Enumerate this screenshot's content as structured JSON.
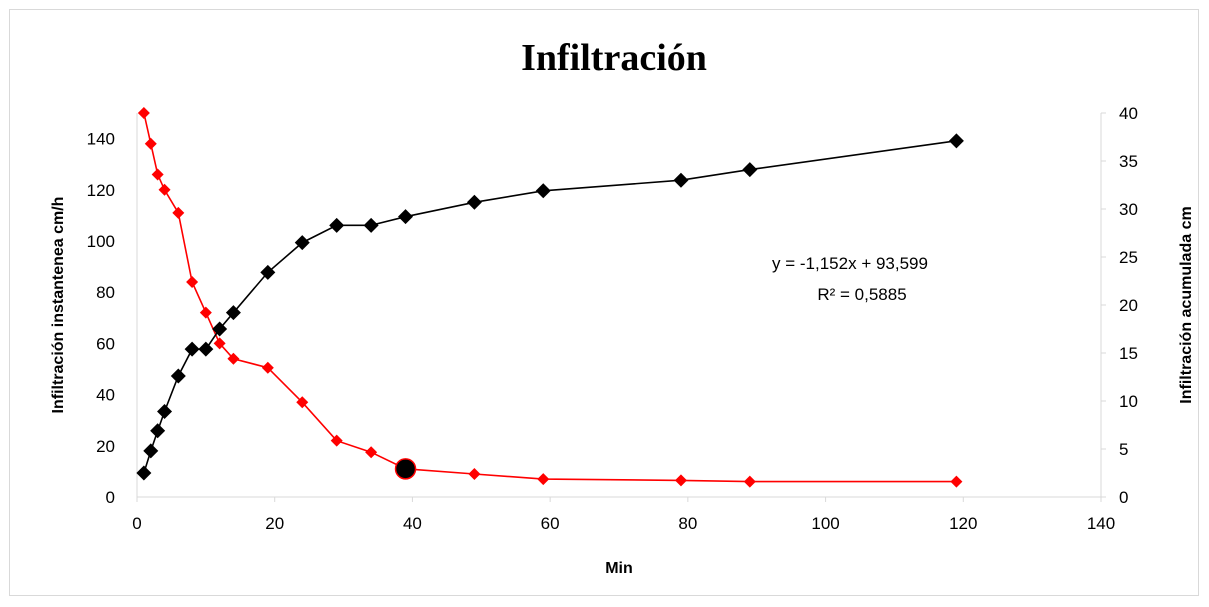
{
  "chart_data": {
    "type": "scatter",
    "title": "Infiltración",
    "xlabel": "Min",
    "ylabel": "Infiltración instantenea cm/h",
    "y2label": "Infiltración  acumulada cm",
    "xlim": [
      0,
      140
    ],
    "ylim": [
      0,
      150
    ],
    "y2lim": [
      0,
      40
    ],
    "x_ticks": [
      "0",
      "20",
      "40",
      "60",
      "80",
      "100",
      "120",
      "140"
    ],
    "y_ticks": [
      "0",
      "20",
      "40",
      "60",
      "80",
      "100",
      "120",
      "140"
    ],
    "y2_ticks": [
      "0",
      "5",
      "10",
      "15",
      "20",
      "25",
      "30",
      "35",
      "40"
    ],
    "grid": false,
    "series": [
      {
        "axis": "left",
        "color": "#ff0000",
        "marker": "diamond",
        "x": [
          1,
          2,
          3,
          4,
          6,
          8,
          10,
          12,
          14,
          19,
          24,
          29,
          34,
          39,
          49,
          59,
          79,
          89,
          119
        ],
        "y": [
          150,
          138,
          126,
          120,
          111,
          84,
          72,
          60,
          54,
          50.5,
          37,
          22,
          17.5,
          11,
          9,
          7,
          6.5,
          6,
          6
        ]
      },
      {
        "axis": "right",
        "color": "#000000",
        "marker": "diamond",
        "x": [
          1,
          2,
          3,
          4,
          6,
          8,
          10,
          12,
          14,
          19,
          24,
          29,
          34,
          39,
          49,
          59,
          79,
          89,
          119
        ],
        "y": [
          2.5,
          4.8,
          6.9,
          8.9,
          12.6,
          15.4,
          15.4,
          17.5,
          19.2,
          23.4,
          26.5,
          28.3,
          28.3,
          29.2,
          30.7,
          31.9,
          33,
          34.1,
          37.1
        ]
      }
    ],
    "highlight_point": {
      "x": 39,
      "y": 11,
      "axis": "left"
    },
    "annotation": {
      "equation": "y = -1,152x + 93,599",
      "r2": "R² = 0,5885"
    }
  }
}
